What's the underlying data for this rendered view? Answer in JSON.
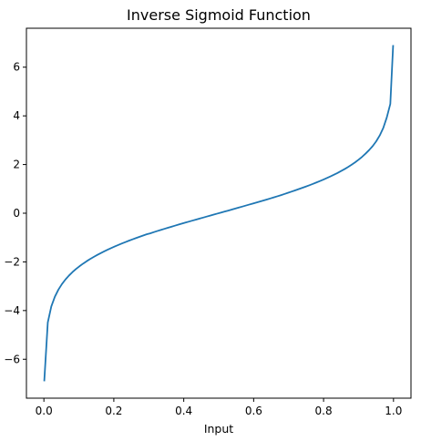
{
  "chart_data": {
    "type": "line",
    "title": "Inverse Sigmoid Function",
    "xlabel": "Input",
    "ylabel": "",
    "xlim": [
      -0.05,
      1.05
    ],
    "ylim": [
      -7.6,
      7.6
    ],
    "xticks": [
      0.0,
      0.2,
      0.4,
      0.6,
      0.8,
      1.0
    ],
    "xtick_labels": [
      "0.0",
      "0.2",
      "0.4",
      "0.6",
      "0.8",
      "1.0"
    ],
    "yticks": [
      -6,
      -4,
      -2,
      0,
      2,
      4,
      6
    ],
    "ytick_labels": [
      "−6",
      "−4",
      "−2",
      "0",
      "2",
      "4",
      "6"
    ],
    "grid": false,
    "series": [
      {
        "color": "#1f77b4",
        "x": [
          0.001,
          0.0111,
          0.0212,
          0.0313,
          0.0414,
          0.0515,
          0.0616,
          0.0717,
          0.0818,
          0.0919,
          0.102,
          0.1121,
          0.1222,
          0.1323,
          0.1424,
          0.1525,
          0.1626,
          0.1727,
          0.1828,
          0.1929,
          0.203,
          0.2131,
          0.2232,
          0.2333,
          0.2434,
          0.2535,
          0.2636,
          0.2737,
          0.2838,
          0.2939,
          0.304,
          0.3141,
          0.3242,
          0.3343,
          0.3444,
          0.3545,
          0.3646,
          0.3747,
          0.3848,
          0.3949,
          0.405,
          0.4151,
          0.4252,
          0.4353,
          0.4454,
          0.4555,
          0.4656,
          0.4757,
          0.4858,
          0.4959,
          0.5061,
          0.5162,
          0.5263,
          0.5364,
          0.5465,
          0.5566,
          0.5667,
          0.5768,
          0.5869,
          0.597,
          0.6071,
          0.6172,
          0.6273,
          0.6374,
          0.6475,
          0.6576,
          0.6677,
          0.6778,
          0.6879,
          0.698,
          0.7081,
          0.7182,
          0.7283,
          0.7384,
          0.7485,
          0.7586,
          0.7687,
          0.7788,
          0.7889,
          0.799,
          0.8091,
          0.8192,
          0.8293,
          0.8394,
          0.8495,
          0.8596,
          0.8697,
          0.8798,
          0.8899,
          0.9,
          0.9101,
          0.9202,
          0.9303,
          0.9404,
          0.9505,
          0.9606,
          0.9707,
          0.9808,
          0.9909,
          0.999
        ],
        "y": [
          -6.907,
          -4.49,
          -3.832,
          -3.432,
          -3.142,
          -2.913,
          -2.724,
          -2.562,
          -2.419,
          -2.292,
          -2.177,
          -2.071,
          -1.973,
          -1.882,
          -1.797,
          -1.716,
          -1.639,
          -1.566,
          -1.497,
          -1.429,
          -1.365,
          -1.303,
          -1.243,
          -1.185,
          -1.128,
          -1.073,
          -1.02,
          -0.968,
          -0.917,
          -0.867,
          -0.828,
          -0.78,
          -0.733,
          -0.688,
          -0.644,
          -0.6,
          -0.556,
          -0.512,
          -0.47,
          -0.427,
          -0.385,
          -0.344,
          -0.302,
          -0.261,
          -0.221,
          -0.18,
          -0.138,
          -0.097,
          -0.057,
          -0.016,
          0.024,
          0.065,
          0.105,
          0.146,
          0.187,
          0.228,
          0.269,
          0.311,
          0.353,
          0.395,
          0.436,
          0.477,
          0.519,
          0.563,
          0.606,
          0.651,
          0.695,
          0.741,
          0.789,
          0.838,
          0.886,
          0.936,
          0.987,
          1.038,
          1.091,
          1.145,
          1.2,
          1.259,
          1.318,
          1.38,
          1.443,
          1.509,
          1.579,
          1.651,
          1.728,
          1.809,
          1.895,
          1.99,
          2.088,
          2.197,
          2.316,
          2.45,
          2.595,
          2.757,
          2.953,
          3.193,
          3.501,
          3.934,
          4.49,
          6.907
        ]
      }
    ]
  }
}
